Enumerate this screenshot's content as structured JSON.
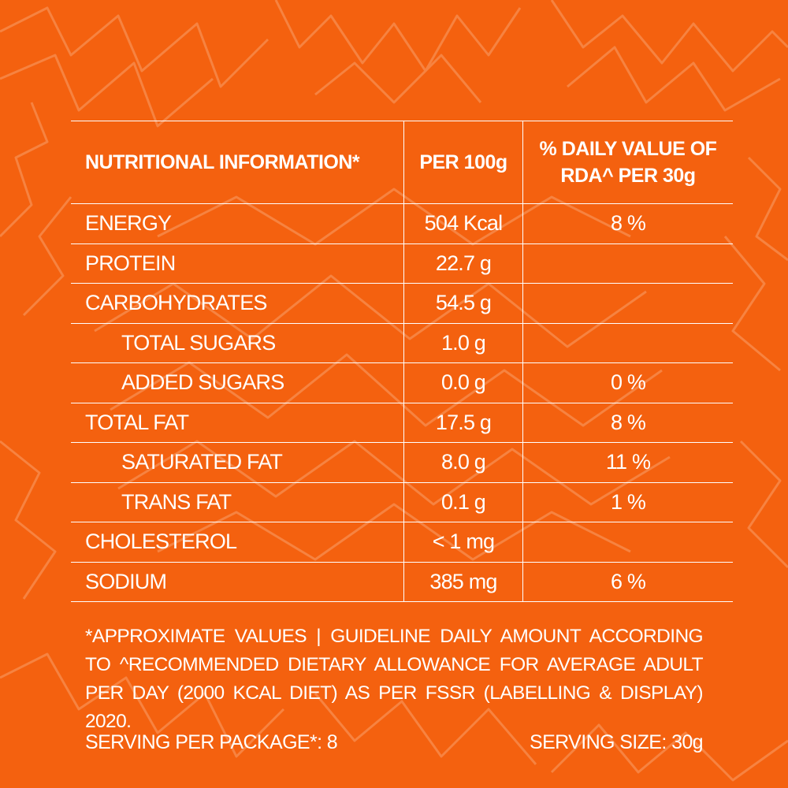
{
  "colors": {
    "background": "#f4610f",
    "text": "#ffffff",
    "pattern": "#f7894a"
  },
  "table": {
    "headers": {
      "nutrient": "NUTRITIONAL INFORMATION*",
      "per_100g": "PER 100g",
      "daily_value_line1": "% DAILY VALUE OF",
      "daily_value_line2": "RDA^ PER 30g"
    },
    "rows": [
      {
        "name": "ENERGY",
        "per_100g": "504 Kcal",
        "daily_value": "8 %"
      },
      {
        "name": "PROTEIN",
        "per_100g": "22.7 g",
        "daily_value": ""
      },
      {
        "name": "CARBOHYDRATES",
        "per_100g": "54.5 g",
        "daily_value": ""
      },
      {
        "name": "TOTAL SUGARS",
        "per_100g": "1.0 g",
        "daily_value": ""
      },
      {
        "name": "ADDED SUGARS",
        "per_100g": "0.0 g",
        "daily_value": "0 %"
      },
      {
        "name": "TOTAL FAT",
        "per_100g": "17.5 g",
        "daily_value": "8 %"
      },
      {
        "name": "SATURATED FAT",
        "per_100g": "8.0 g",
        "daily_value": "11 %"
      },
      {
        "name": "TRANS FAT",
        "per_100g": "0.1 g",
        "daily_value": "1 %"
      },
      {
        "name": "CHOLESTEROL",
        "per_100g": "< 1 mg",
        "daily_value": ""
      },
      {
        "name": "SODIUM",
        "per_100g": "385 mg",
        "daily_value": "6 %"
      }
    ]
  },
  "footnote": "*APPROXIMATE VALUES | GUIDELINE DAILY AMOUNT ACCORDING TO ^RECOMMENDED DIETARY ALLOWANCE FOR AVERAGE ADULT PER DAY (2000 KCAL DIET) AS PER FSSR (LABELLING & DISPLAY) 2020.",
  "serving": {
    "per_package": "SERVING PER PACKAGE*: 8",
    "size": "SERVING SIZE: 30g"
  }
}
